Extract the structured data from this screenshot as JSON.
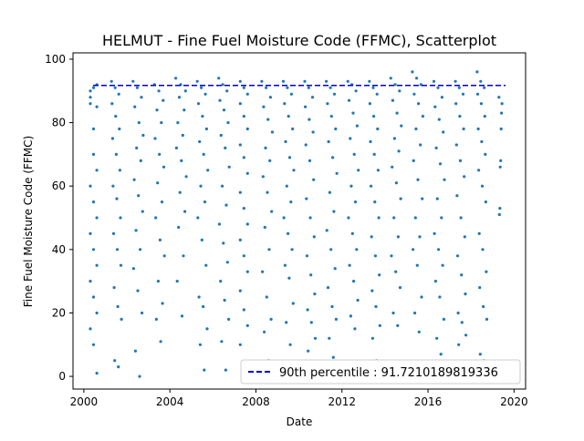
{
  "chart_data": {
    "type": "scatter",
    "title": "HELMUT - Fine Fuel Moisture Code (FFMC), Scatterplot",
    "xlabel": "Date",
    "ylabel": "Fine Fuel Moisture Code (FFMC)",
    "xlim": [
      "1999-07-01",
      "2020-07-15"
    ],
    "ylim": [
      -4,
      102
    ],
    "xticks": [
      {
        "date": "2000-01-01",
        "label": "2000"
      },
      {
        "date": "2004-01-01",
        "label": "2004"
      },
      {
        "date": "2008-01-01",
        "label": "2008"
      },
      {
        "date": "2012-01-01",
        "label": "2012"
      },
      {
        "date": "2016-01-01",
        "label": "2016"
      },
      {
        "date": "2020-01-01",
        "label": "2020"
      }
    ],
    "yticks": [
      0,
      20,
      40,
      60,
      80,
      100
    ],
    "grid": false,
    "legend_position": "lower right",
    "marker_color": "#1f77b4",
    "reference_line": {
      "label": "90th percentile : 91.7210189819336",
      "value": 91.7210189819336,
      "color": "#0000cc",
      "style": "dashed"
    },
    "series": [
      {
        "clusters": [
          {
            "year": 2000,
            "x_start": "2000-04-20",
            "x_end": "2000-09-25",
            "y_values": [
              88,
              91,
              85,
              90,
              78,
              92,
              86,
              70,
              65,
              60,
              55,
              50,
              45,
              40,
              35,
              30,
              25,
              20,
              15,
              10,
              1
            ]
          },
          {
            "year": 2001,
            "x_start": "2001-04-15",
            "x_end": "2001-10-01",
            "y_values": [
              93,
              91,
              89,
              86,
              82,
              78,
              75,
              70,
              65,
              60,
              56,
              50,
              45,
              40,
              35,
              28,
              22,
              18,
              5,
              3
            ]
          },
          {
            "year": 2002,
            "x_start": "2002-04-15",
            "x_end": "2002-10-05",
            "y_values": [
              93,
              91,
              88,
              85,
              80,
              76,
              72,
              68,
              62,
              57,
              52,
              46,
              40,
              34,
              27,
              20,
              8,
              0
            ]
          },
          {
            "year": 2003,
            "x_start": "2003-04-15",
            "x_end": "2003-09-30",
            "y_values": [
              92,
              90,
              87,
              84,
              80,
              75,
              70,
              66,
              61,
              55,
              50,
              43,
              38,
              30,
              23,
              18,
              11
            ]
          },
          {
            "year": 2004,
            "x_start": "2004-04-10",
            "x_end": "2004-10-05",
            "y_values": [
              94,
              92,
              90,
              88,
              84,
              80,
              76,
              72,
              68,
              63,
              58,
              52,
              47,
              38,
              30,
              19
            ]
          },
          {
            "year": 2005,
            "x_start": "2005-04-10",
            "x_end": "2005-10-05",
            "y_values": [
              93,
              91,
              89,
              86,
              82,
              78,
              74,
              70,
              65,
              60,
              55,
              50,
              43,
              35,
              25,
              22,
              15,
              10,
              2
            ]
          },
          {
            "year": 2006,
            "x_start": "2006-04-10",
            "x_end": "2006-10-05",
            "y_values": [
              94,
              92,
              90,
              87,
              84,
              80,
              76,
              72,
              66,
              60,
              54,
              48,
              42,
              36,
              30,
              24,
              18,
              11,
              2
            ]
          },
          {
            "year": 2007,
            "x_start": "2007-04-10",
            "x_end": "2007-10-05",
            "y_values": [
              93,
              91,
              89,
              86,
              82,
              78,
              73,
              69,
              64,
              58,
              53,
              48,
              43,
              38,
              33,
              27,
              21,
              16,
              10,
              4,
              1
            ]
          },
          {
            "year": 2008,
            "x_start": "2008-04-10",
            "x_end": "2008-10-05",
            "y_values": [
              93,
              91,
              88,
              85,
              81,
              77,
              72,
              68,
              63,
              58,
              52,
              47,
              40,
              33,
              25,
              18,
              14,
              5
            ]
          },
          {
            "year": 2009,
            "x_start": "2009-04-10",
            "x_end": "2009-10-05",
            "y_values": [
              93,
              91,
              89,
              86,
              82,
              78,
              74,
              69,
              65,
              60,
              55,
              50,
              45,
              40,
              35,
              31,
              23,
              17,
              10
            ]
          },
          {
            "year": 2010,
            "x_start": "2010-04-10",
            "x_end": "2010-10-05",
            "y_values": [
              93,
              91,
              88,
              85,
              81,
              77,
              73,
              68,
              62,
              56,
              50,
              44,
              38,
              32,
              26,
              21,
              17,
              12,
              8,
              3
            ]
          },
          {
            "year": 2011,
            "x_start": "2011-04-10",
            "x_end": "2011-10-05",
            "y_values": [
              93,
              91,
              89,
              86,
              82,
              78,
              74,
              69,
              64,
              58,
              52,
              46,
              40,
              34,
              28,
              22,
              18,
              12,
              6
            ]
          },
          {
            "year": 2012,
            "x_start": "2012-04-10",
            "x_end": "2012-10-05",
            "y_values": [
              93,
              92,
              90,
              87,
              83,
              79,
              75,
              70,
              65,
              60,
              55,
              50,
              45,
              40,
              35,
              30,
              24,
              19,
              15
            ]
          },
          {
            "year": 2013,
            "x_start": "2013-04-10",
            "x_end": "2013-10-05",
            "y_values": [
              93,
              91,
              89,
              86,
              82,
              78,
              74,
              70,
              65,
              60,
              55,
              50,
              44,
              38,
              32,
              27,
              22,
              16,
              12,
              5
            ]
          },
          {
            "year": 2014,
            "x_start": "2014-04-10",
            "x_end": "2014-10-05",
            "y_values": [
              94,
              92,
              90,
              87,
              83,
              79,
              75,
              71,
              66,
              61,
              56,
              50,
              44,
              38,
              33,
              28,
              20,
              16
            ]
          },
          {
            "year": 2015,
            "x_start": "2015-04-10",
            "x_end": "2015-10-05",
            "y_values": [
              96,
              94,
              92,
              89,
              86,
              82,
              78,
              73,
              68,
              62,
              56,
              50,
              44,
              40,
              35,
              25,
              20,
              14
            ]
          },
          {
            "year": 2016,
            "x_start": "2016-04-10",
            "x_end": "2016-10-05",
            "y_values": [
              93,
              91,
              88,
              85,
              81,
              77,
              72,
              67,
              62,
              56,
              50,
              45,
              40,
              35,
              30,
              25,
              18,
              12,
              7
            ]
          },
          {
            "year": 2017,
            "x_start": "2017-04-10",
            "x_end": "2017-10-05",
            "y_values": [
              93,
              91,
              89,
              86,
              82,
              78,
              73,
              68,
              63,
              57,
              50,
              44,
              38,
              32,
              26,
              20,
              17,
              13,
              10,
              4
            ]
          },
          {
            "year": 2018,
            "x_start": "2018-04-15",
            "x_end": "2018-09-25",
            "y_values": [
              96,
              93,
              91,
              89,
              86,
              82,
              78,
              74,
              70,
              65,
              60,
              55,
              45,
              40,
              33,
              28,
              22,
              18,
              7,
              5
            ]
          },
          {
            "year": 2019,
            "x_start": "2019-04-20",
            "x_end": "2019-06-10",
            "y_values": [
              88,
              86,
              83,
              78,
              68,
              66,
              53,
              51
            ]
          }
        ]
      }
    ]
  }
}
